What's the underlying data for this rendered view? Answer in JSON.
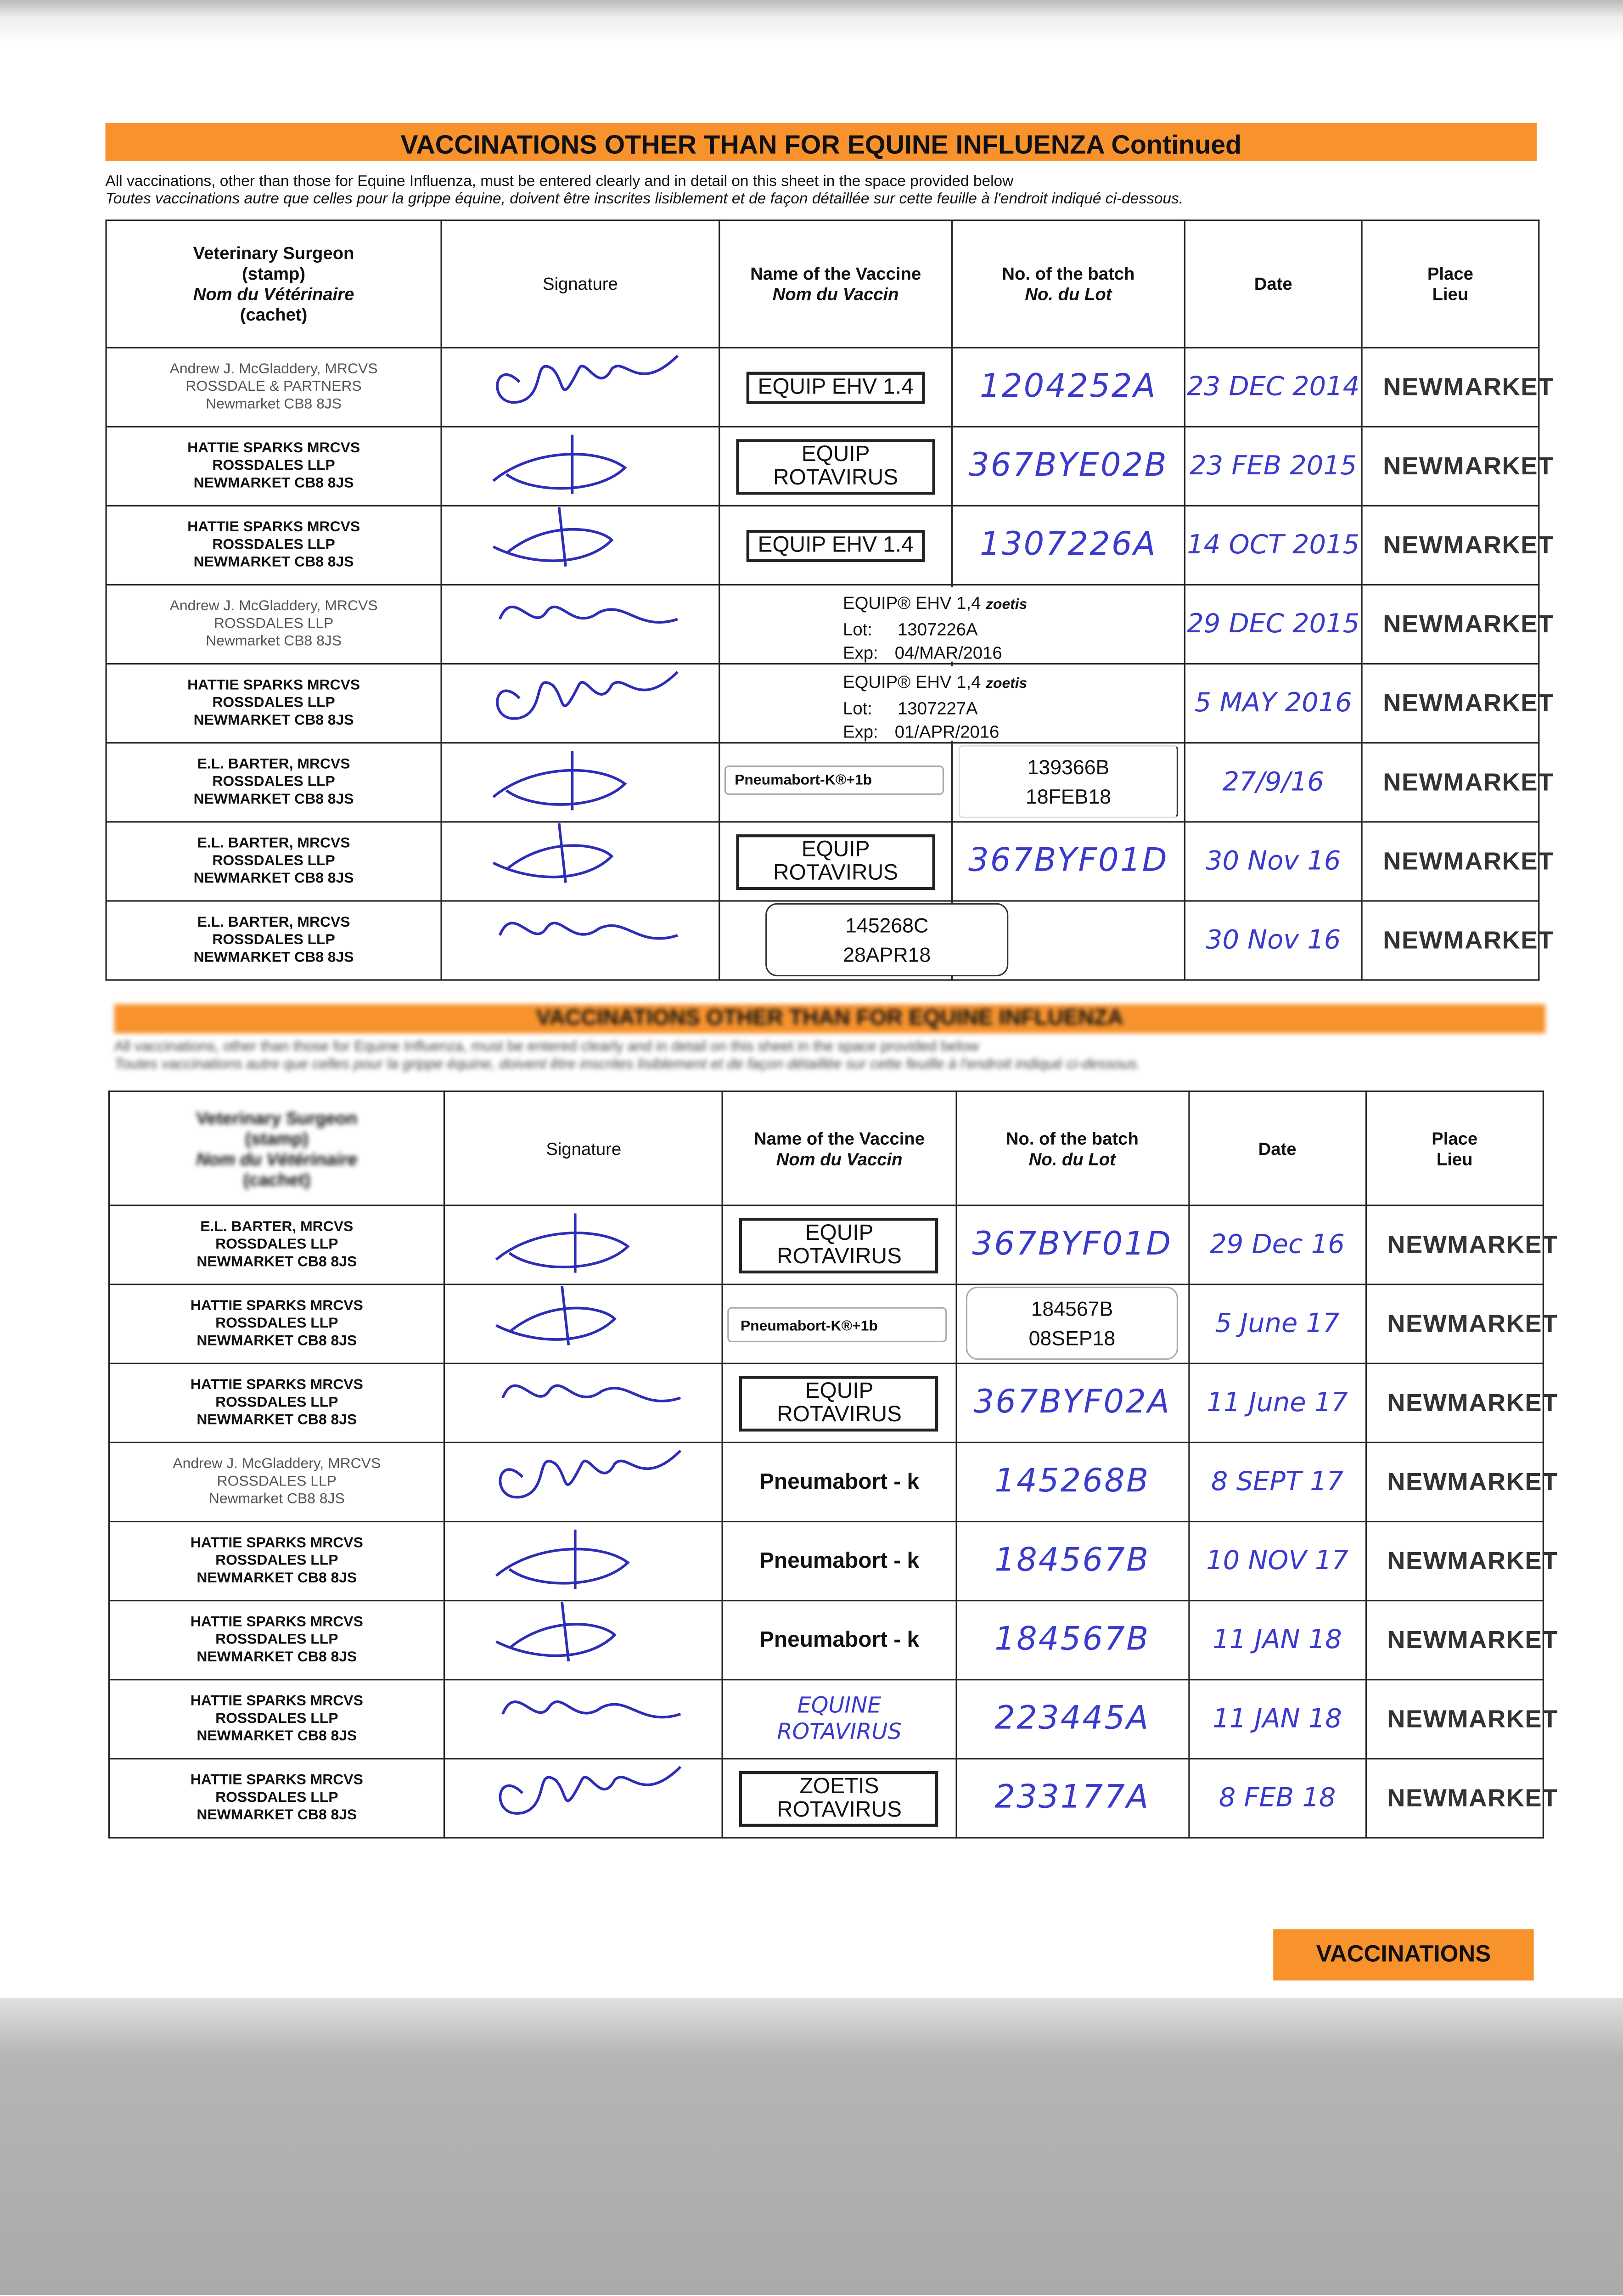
{
  "page1": {
    "title": "VACCINATIONS OTHER THAN FOR EQUINE INFLUENZA Continued",
    "instruction_en": "All vaccinations, other than those for Equine Influenza, must be entered clearly and in detail on this sheet in the space provided below",
    "instruction_fr": "Toutes vaccinations autre que celles pour la grippe équine, doivent être inscrites lisiblement et de façon détaillée sur cette feuille à l'endroit indiqué ci-dessous."
  },
  "page2": {
    "title": "VACCINATIONS OTHER THAN FOR EQUINE INFLUENZA",
    "instruction_en": "All vaccinations, other than those for Equine Influenza, must be entered clearly and in detail on this sheet in the space provided below",
    "instruction_fr": "Toutes vaccinations autre que celles pour la grippe équine, doivent être inscrites lisiblement et de façon détaillée sur cette feuille à l'endroit indiqué ci-dessous."
  },
  "headers": {
    "surgeon": [
      "Veterinary Surgeon",
      "(stamp)",
      "Nom du Vétérinaire",
      "(cachet)"
    ],
    "signature": "Signature",
    "vaccine": [
      "Name of the Vaccine",
      "Nom du Vaccin"
    ],
    "batch": [
      "No. of the batch",
      "No. du Lot"
    ],
    "date": "Date",
    "place": [
      "Place",
      "Lieu"
    ]
  },
  "table1_rows": [
    {
      "surgeon": [
        "Andrew J. McGladdery, MRCVS",
        "ROSSDALE & PARTNERS",
        "Newmarket CB8 8JS"
      ],
      "vaccine": "EQUIP EHV 1.4",
      "vaccine_style": "stamp",
      "batch": "1204252A",
      "date": "23 DEC 2014",
      "place": "NEWMARKET"
    },
    {
      "surgeon": [
        "HATTIE SPARKS MRCVS",
        "ROSSDALES LLP",
        "NEWMARKET CB8 8JS"
      ],
      "vaccine": "EQUIP ROTAVIRUS",
      "vaccine_style": "stamp",
      "batch": "367BYE02B",
      "date": "23 FEB 2015",
      "place": "NEWMARKET"
    },
    {
      "surgeon": [
        "HATTIE SPARKS MRCVS",
        "ROSSDALES LLP",
        "NEWMARKET CB8 8JS"
      ],
      "vaccine": "EQUIP EHV 1.4",
      "vaccine_style": "stamp",
      "batch": "1307226A",
      "date": "14 OCT 2015",
      "place": "NEWMARKET"
    },
    {
      "surgeon": [
        "Andrew J. McGladdery, MRCVS",
        "ROSSDALES LLP",
        "Newmarket CB8 8JS"
      ],
      "vaccine": "",
      "batch": "",
      "date": "29 DEC 2015",
      "place": "NEWMARKET"
    },
    {
      "surgeon": [
        "HATTIE SPARKS MRCVS",
        "ROSSDALES LLP",
        "NEWMARKET CB8 8JS"
      ],
      "vaccine": "",
      "batch": "",
      "date": "5 MAY 2016",
      "place": "NEWMARKET"
    },
    {
      "surgeon": [
        "E.L. BARTER, MRCVS",
        "ROSSDALES LLP",
        "NEWMARKET CB8 8JS"
      ],
      "vaccine": "",
      "batch": "",
      "date": "27/9/16",
      "place": "NEWMARKET"
    },
    {
      "surgeon": [
        "E.L. BARTER, MRCVS",
        "ROSSDALES LLP",
        "NEWMARKET CB8 8JS"
      ],
      "vaccine": "EQUIP ROTAVIRUS",
      "vaccine_style": "stamp",
      "batch": "367BYF01D",
      "date": "30 Nov 16",
      "place": "NEWMARKET"
    },
    {
      "surgeon": [
        "E.L. BARTER, MRCVS",
        "ROSSDALES LLP",
        "NEWMARKET CB8 8JS"
      ],
      "vaccine": "",
      "batch": "",
      "date": "30 Nov 16",
      "place": "NEWMARKET"
    }
  ],
  "table1_labels": [
    {
      "product": "EQUIP® EHV 1,4",
      "brand": "zoetis",
      "lot_label": "Lot:",
      "lot": "1307226A",
      "exp_label": "Exp:",
      "exp": "04/MAR/2016"
    },
    {
      "product": "EQUIP® EHV 1,4",
      "brand": "zoetis",
      "lot_label": "Lot:",
      "lot": "1307227A",
      "exp_label": "Exp:",
      "exp": "01/APR/2016"
    },
    {
      "lot": "139366B",
      "exp": "18FEB18"
    },
    {
      "product": "Pneumabort-K®+1b"
    },
    {
      "lot": "145268C",
      "exp": "28APR18"
    }
  ],
  "table2_rows": [
    {
      "surgeon": [
        "E.L. BARTER, MRCVS",
        "ROSSDALES LLP",
        "NEWMARKET CB8 8JS"
      ],
      "vaccine": "EQUIP ROTAVIRUS",
      "vaccine_style": "stamp",
      "batch": "367BYF01D",
      "date": "29 Dec 16",
      "place": "NEWMARKET"
    },
    {
      "surgeon": [
        "HATTIE SPARKS MRCVS",
        "ROSSDALES LLP",
        "NEWMARKET CB8 8JS"
      ],
      "vaccine": "",
      "batch": "",
      "date": "5 June 17",
      "place": "NEWMARKET"
    },
    {
      "surgeon": [
        "HATTIE SPARKS MRCVS",
        "ROSSDALES LLP",
        "NEWMARKET CB8 8JS"
      ],
      "vaccine": "EQUIP ROTAVIRUS",
      "vaccine_style": "stamp",
      "batch": "367BYF02A",
      "date": "11 June 17",
      "place": "NEWMARKET"
    },
    {
      "surgeon": [
        "Andrew J. McGladdery, MRCVS",
        "ROSSDALES LLP",
        "Newmarket CB8 8JS"
      ],
      "vaccine": "Pneumabort - k",
      "vaccine_style": "print",
      "batch": "145268B",
      "date": "8 SEPT 17",
      "place": "NEWMARKET"
    },
    {
      "surgeon": [
        "HATTIE SPARKS MRCVS",
        "ROSSDALES LLP",
        "NEWMARKET CB8 8JS"
      ],
      "vaccine": "Pneumabort - k",
      "vaccine_style": "print",
      "batch": "184567B",
      "date": "10 NOV 17",
      "place": "NEWMARKET"
    },
    {
      "surgeon": [
        "HATTIE SPARKS MRCVS",
        "ROSSDALES LLP",
        "NEWMARKET CB8 8JS"
      ],
      "vaccine": "Pneumabort - k",
      "vaccine_style": "print",
      "batch": "184567B",
      "date": "11 JAN 18",
      "place": "NEWMARKET"
    },
    {
      "surgeon": [
        "HATTIE SPARKS MRCVS",
        "ROSSDALES LLP",
        "NEWMARKET CB8 8JS"
      ],
      "vaccine": "EQUINE ROTAVIRUS",
      "vaccine_style": "hand",
      "batch": "223445A",
      "date": "11 JAN 18",
      "place": "NEWMARKET"
    },
    {
      "surgeon": [
        "HATTIE SPARKS MRCVS",
        "ROSSDALES LLP",
        "NEWMARKET CB8 8JS"
      ],
      "vaccine": "ZOETIS ROTAVIRUS",
      "vaccine_style": "stamp",
      "batch": "233177A",
      "date": "8 FEB 18",
      "place": "NEWMARKET"
    }
  ],
  "table2_labels": [
    {
      "product": "Pneumabort-K®+1b"
    },
    {
      "lot": "184567B",
      "exp": "08SEP18"
    }
  ],
  "footer_tag": "VACCINATIONS",
  "colors": {
    "orange_band": "#f7922d",
    "ink_blue": "#3a3acb"
  }
}
